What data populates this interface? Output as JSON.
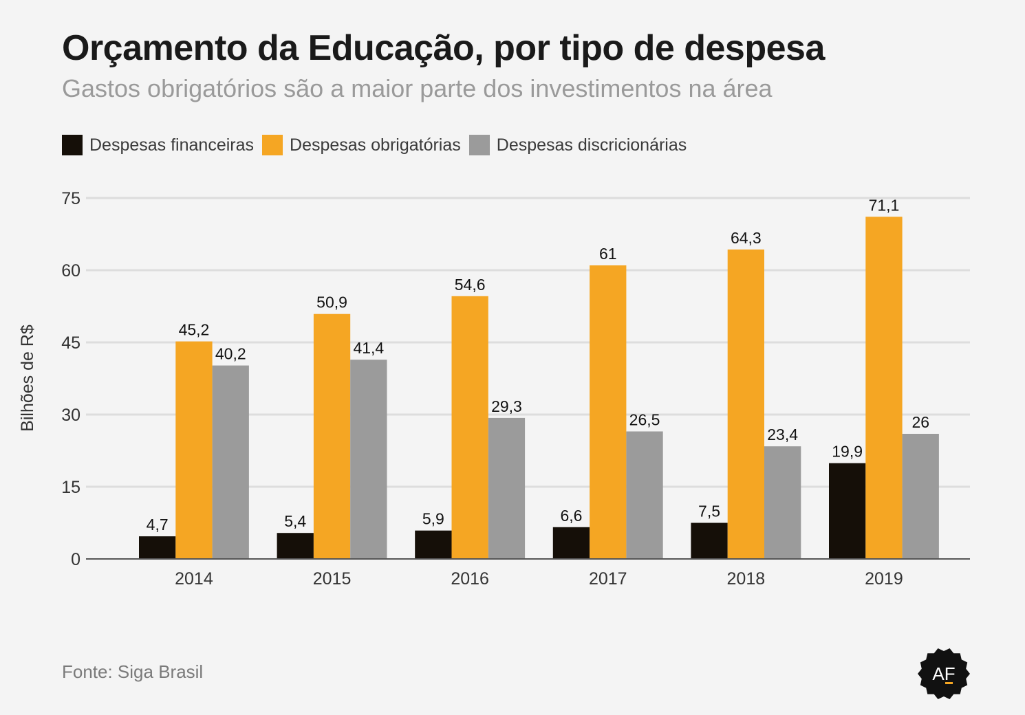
{
  "title": "Orçamento da Educação, por tipo de despesa",
  "subtitle": "Gastos obrigatórios são a maior parte dos investimentos na área",
  "source": "Fonte: Siga Brasil",
  "logo_text": "AF",
  "colors": {
    "financeiras": "#150f08",
    "obrigatorias": "#f5a623",
    "discricionarias": "#9b9b9b",
    "grid": "#dddddd",
    "axis": "#555555"
  },
  "chart_data": {
    "type": "bar",
    "title": "Orçamento da Educação, por tipo de despesa",
    "subtitle": "Gastos obrigatórios são a maior parte dos investimentos na área",
    "xlabel": "",
    "ylabel": "Bilhões de R$",
    "ylim": [
      0,
      75
    ],
    "yticks": [
      0,
      15,
      30,
      45,
      60,
      75
    ],
    "grid": true,
    "legend_position": "top-left",
    "categories": [
      "2014",
      "2015",
      "2016",
      "2017",
      "2018",
      "2019"
    ],
    "series": [
      {
        "name": "Despesas financeiras",
        "key": "financeiras",
        "values": [
          4.7,
          5.4,
          5.9,
          6.6,
          7.5,
          19.9
        ],
        "labels": [
          "4,7",
          "5,4",
          "5,9",
          "6,6",
          "7,5",
          "19,9"
        ]
      },
      {
        "name": "Despesas obrigatórias",
        "key": "obrigatorias",
        "values": [
          45.2,
          50.9,
          54.6,
          61,
          64.3,
          71.1
        ],
        "labels": [
          "45,2",
          "50,9",
          "54,6",
          "61",
          "64,3",
          "71,1"
        ]
      },
      {
        "name": "Despesas discricionárias",
        "key": "discricionarias",
        "values": [
          40.2,
          41.4,
          29.3,
          26.5,
          23.4,
          26
        ],
        "labels": [
          "40,2",
          "41,4",
          "29,3",
          "26,5",
          "23,4",
          "26"
        ]
      }
    ]
  }
}
